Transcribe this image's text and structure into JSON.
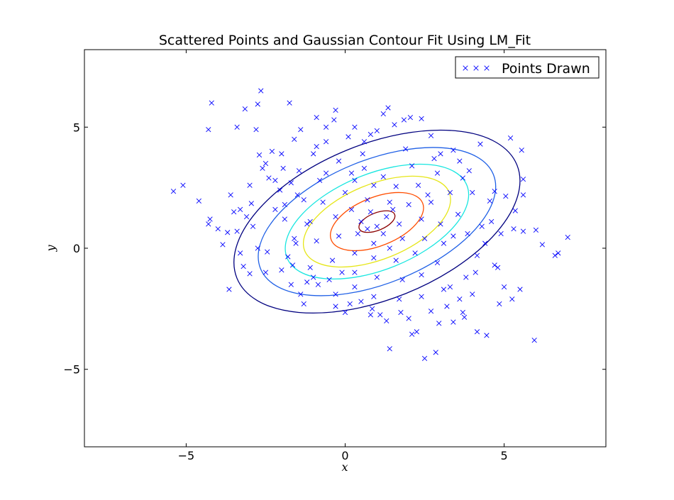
{
  "chart_data": {
    "type": "scatter",
    "title": "Scattered Points and Gaussian Contour Fit Using LM_Fit",
    "xlabel": "x",
    "ylabel": "y",
    "xlim": [
      -8.2,
      8.2
    ],
    "ylim": [
      -8.2,
      8.2
    ],
    "xticks": [
      -5,
      0,
      5
    ],
    "xtick_labels": [
      "−5",
      "0",
      "5"
    ],
    "yticks": [
      -5,
      0,
      5
    ],
    "ytick_labels": [
      "−5",
      "0",
      "5"
    ],
    "grid": false,
    "legend": {
      "location": "upper right",
      "entries": [
        "Points Drawn"
      ]
    },
    "series": [
      {
        "name": "Points Drawn",
        "marker": "x",
        "color": "#0000ff",
        "points": [
          [
            -5.4,
            2.35
          ],
          [
            -5.1,
            2.6
          ],
          [
            -4.6,
            1.95
          ],
          [
            -4.2,
            6.0
          ],
          [
            -4.3,
            4.9
          ],
          [
            -4.3,
            1.0
          ],
          [
            -4.25,
            1.2
          ],
          [
            -3.65,
            -1.7
          ],
          [
            -3.7,
            0.65
          ],
          [
            -3.85,
            0.15
          ],
          [
            -3.4,
            0.7
          ],
          [
            -3.2,
            -0.75
          ],
          [
            -3.0,
            -1.05
          ],
          [
            -3.15,
            5.75
          ],
          [
            -2.75,
            5.95
          ],
          [
            -2.8,
            4.9
          ],
          [
            -2.7,
            3.85
          ],
          [
            -2.5,
            3.5
          ],
          [
            -2.95,
            1.85
          ],
          [
            -3.1,
            1.3
          ],
          [
            -2.65,
            6.5
          ],
          [
            -3.4,
            5.0
          ],
          [
            -2.3,
            4.0
          ],
          [
            -2.2,
            2.8
          ],
          [
            -2.05,
            2.4
          ],
          [
            -1.75,
            6.0
          ],
          [
            -1.6,
            4.5
          ],
          [
            -1.45,
            3.2
          ],
          [
            -1.3,
            2.0
          ],
          [
            -1.2,
            1.0
          ],
          [
            -1.55,
            0.2
          ],
          [
            -1.8,
            -0.35
          ],
          [
            -1.7,
            -1.5
          ],
          [
            -1.3,
            -2.3
          ],
          [
            -1.0,
            -1.2
          ],
          [
            -0.9,
            4.2
          ],
          [
            -0.6,
            5.0
          ],
          [
            -0.3,
            5.7
          ],
          [
            -0.35,
            5.3
          ],
          [
            0.1,
            4.6
          ],
          [
            0.3,
            5.0
          ],
          [
            0.55,
            3.9
          ],
          [
            0.8,
            4.7
          ],
          [
            1.0,
            4.85
          ],
          [
            1.35,
            5.8
          ],
          [
            1.55,
            5.1
          ],
          [
            1.85,
            5.3
          ],
          [
            2.05,
            5.4
          ],
          [
            2.4,
            5.35
          ],
          [
            2.7,
            4.65
          ],
          [
            3.0,
            3.9
          ],
          [
            3.4,
            4.05
          ],
          [
            3.7,
            2.9
          ],
          [
            4.25,
            4.3
          ],
          [
            4.0,
            2.3
          ],
          [
            4.55,
            1.95
          ],
          [
            4.7,
            2.35
          ],
          [
            5.05,
            2.15
          ],
          [
            5.2,
            4.55
          ],
          [
            5.55,
            4.05
          ],
          [
            5.6,
            2.85
          ],
          [
            5.35,
            1.55
          ],
          [
            5.3,
            0.8
          ],
          [
            5.6,
            0.7
          ],
          [
            5.6,
            2.2
          ],
          [
            6.0,
            0.75
          ],
          [
            6.2,
            0.15
          ],
          [
            6.6,
            -0.3
          ],
          [
            6.7,
            -0.2
          ],
          [
            7.0,
            0.45
          ],
          [
            5.95,
            -3.8
          ],
          [
            5.5,
            -1.7
          ],
          [
            5.25,
            -2.1
          ],
          [
            5.0,
            -1.6
          ],
          [
            4.85,
            -2.3
          ],
          [
            4.8,
            -0.8
          ],
          [
            4.7,
            -0.7
          ],
          [
            4.45,
            -3.6
          ],
          [
            4.15,
            -3.45
          ],
          [
            3.75,
            -2.85
          ],
          [
            3.7,
            -2.65
          ],
          [
            3.4,
            -3.05
          ],
          [
            3.1,
            -1.7
          ],
          [
            2.95,
            -3.1
          ],
          [
            2.85,
            -4.3
          ],
          [
            2.5,
            -4.55
          ],
          [
            2.25,
            -3.45
          ],
          [
            2.1,
            -3.55
          ],
          [
            1.75,
            -2.65
          ],
          [
            1.4,
            -4.15
          ],
          [
            1.1,
            -2.75
          ],
          [
            0.85,
            -2.5
          ],
          [
            0.0,
            -2.65
          ],
          [
            0.15,
            -2.3
          ],
          [
            -0.3,
            -1.9
          ],
          [
            -0.85,
            -1.5
          ],
          [
            -1.65,
            -0.7
          ],
          [
            -2.45,
            -0.15
          ],
          [
            -2.75,
            0.0
          ],
          [
            -2.2,
            1.6
          ],
          [
            -1.95,
            3.3
          ],
          [
            -1.0,
            3.9
          ],
          [
            -0.2,
            3.6
          ],
          [
            0.6,
            3.3
          ],
          [
            1.2,
            2.95
          ],
          [
            2.1,
            3.4
          ],
          [
            2.9,
            3.1
          ],
          [
            3.3,
            2.3
          ],
          [
            3.55,
            1.4
          ],
          [
            3.85,
            0.6
          ],
          [
            4.15,
            -0.3
          ],
          [
            3.8,
            -1.2
          ],
          [
            3.3,
            -1.6
          ],
          [
            2.4,
            -2.0
          ],
          [
            1.7,
            -2.1
          ],
          [
            0.9,
            -2.0
          ],
          [
            0.3,
            -1.6
          ],
          [
            -0.5,
            -1.3
          ],
          [
            -1.1,
            -0.8
          ],
          [
            -1.6,
            0.4
          ],
          [
            -1.9,
            1.2
          ],
          [
            -1.5,
            2.2
          ],
          [
            -0.8,
            2.8
          ],
          [
            0.2,
            3.1
          ],
          [
            0.9,
            2.6
          ],
          [
            1.6,
            2.55
          ],
          [
            2.3,
            2.6
          ],
          [
            2.7,
            1.9
          ],
          [
            3.0,
            1.0
          ],
          [
            3.1,
            0.2
          ],
          [
            2.9,
            -0.6
          ],
          [
            2.4,
            -1.1
          ],
          [
            1.8,
            -1.3
          ],
          [
            1.0,
            -1.2
          ],
          [
            0.3,
            -1.0
          ],
          [
            -0.4,
            -0.5
          ],
          [
            -0.9,
            0.3
          ],
          [
            -1.1,
            1.1
          ],
          [
            -0.7,
            1.9
          ],
          [
            0.0,
            2.3
          ],
          [
            0.7,
            2.0
          ],
          [
            1.4,
            1.9
          ],
          [
            2.0,
            1.8
          ],
          [
            2.4,
            1.2
          ],
          [
            2.5,
            0.4
          ],
          [
            2.2,
            -0.2
          ],
          [
            1.6,
            -0.5
          ],
          [
            0.9,
            -0.4
          ],
          [
            0.3,
            -0.2
          ],
          [
            -0.2,
            0.5
          ],
          [
            -0.3,
            1.3
          ],
          [
            0.2,
            1.6
          ],
          [
            0.8,
            1.5
          ],
          [
            1.3,
            1.3
          ],
          [
            1.7,
            1.0
          ],
          [
            1.8,
            0.4
          ],
          [
            1.4,
            0.0
          ],
          [
            0.9,
            0.2
          ],
          [
            0.4,
            0.6
          ],
          [
            0.5,
            1.1
          ],
          [
            1.0,
            0.9
          ],
          [
            1.2,
            0.6
          ],
          [
            0.7,
            0.8
          ],
          [
            1.5,
            1.6
          ],
          [
            2.6,
            2.2
          ],
          [
            3.4,
            0.5
          ],
          [
            -0.1,
            -1.0
          ],
          [
            -2.4,
            2.9
          ],
          [
            -2.6,
            3.3
          ],
          [
            -3.3,
            1.6
          ],
          [
            -2.9,
            0.9
          ],
          [
            -3.5,
            1.5
          ],
          [
            -2.0,
            -0.9
          ],
          [
            -1.2,
            -1.4
          ],
          [
            0.5,
            -2.2
          ],
          [
            1.3,
            -3.0
          ],
          [
            2.7,
            -2.6
          ],
          [
            3.6,
            -2.1
          ],
          [
            4.1,
            -1.0
          ],
          [
            4.4,
            0.2
          ],
          [
            4.6,
            1.1
          ],
          [
            4.9,
            0.6
          ],
          [
            -0.6,
            4.4
          ],
          [
            0.6,
            4.4
          ],
          [
            1.9,
            4.1
          ],
          [
            2.8,
            3.7
          ],
          [
            3.6,
            3.6
          ],
          [
            -1.4,
            4.9
          ],
          [
            -2.0,
            3.9
          ],
          [
            -3.0,
            2.6
          ],
          [
            -3.6,
            2.2
          ],
          [
            -4.0,
            0.8
          ],
          [
            -3.3,
            -0.2
          ],
          [
            -2.5,
            -1.0
          ],
          [
            -1.4,
            -1.9
          ],
          [
            -0.3,
            -2.4
          ],
          [
            0.8,
            -2.75
          ],
          [
            2.0,
            -2.9
          ],
          [
            3.2,
            -2.4
          ],
          [
            4.0,
            -1.9
          ],
          [
            4.3,
            0.9
          ],
          [
            3.9,
            3.2
          ],
          [
            1.2,
            5.55
          ],
          [
            -0.9,
            5.4
          ],
          [
            -1.9,
            1.8
          ],
          [
            -1.7,
            2.7
          ],
          [
            -0.6,
            3.1
          ],
          [
            0.3,
            2.8
          ]
        ]
      }
    ],
    "contours": [
      {
        "level": 1,
        "cx": 1.0,
        "cy": 1.1,
        "rx": 4.75,
        "ry": 3.2,
        "angle": -22,
        "color": "#00007f"
      },
      {
        "level": 2,
        "cx": 1.0,
        "cy": 1.1,
        "rx": 3.95,
        "ry": 2.55,
        "angle": -22,
        "color": "#1f60e6"
      },
      {
        "level": 3,
        "cx": 1.0,
        "cy": 1.1,
        "rx": 3.05,
        "ry": 1.98,
        "angle": -22,
        "color": "#19e6e0"
      },
      {
        "level": 4,
        "cx": 1.0,
        "cy": 1.1,
        "rx": 2.45,
        "ry": 1.55,
        "angle": -22,
        "color": "#e6e619"
      },
      {
        "level": 5,
        "cx": 1.0,
        "cy": 1.1,
        "rx": 1.55,
        "ry": 1.0,
        "angle": -22,
        "color": "#ff4d00"
      },
      {
        "level": 6,
        "cx": 1.0,
        "cy": 1.1,
        "rx": 0.6,
        "ry": 0.36,
        "angle": -22,
        "color": "#8b0000"
      }
    ]
  }
}
